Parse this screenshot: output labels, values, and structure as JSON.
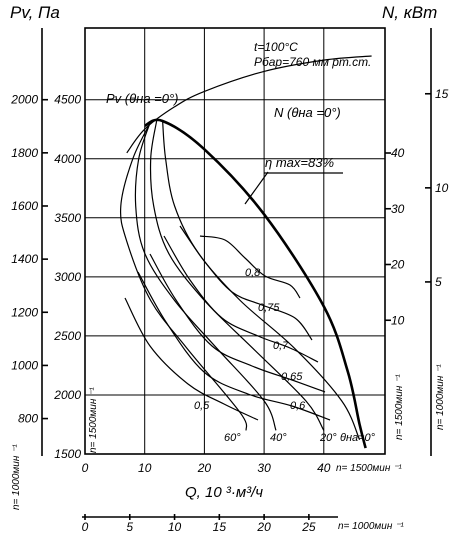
{
  "chart_data": {
    "type": "line",
    "title": "",
    "y_label": "Pv, Па",
    "n_label": "N, кВт",
    "x_label": "Q, 10 ³·м³/ч",
    "conditions": [
      "t=100°C",
      "Pбар=760 мм рт.ст."
    ],
    "eta_max_label": "η max=83%",
    "pv_curve_label": "Pv (θна =0°)",
    "n_curve_label": "N (θна =0°)",
    "speed_1500": "n= 1500мин ⁻¹",
    "speed_1000": "n= 1000мин ⁻¹",
    "axes": {
      "x_1500": {
        "ticks": [
          0,
          10,
          20,
          30,
          40
        ],
        "range": [
          0,
          50
        ]
      },
      "x_1000": {
        "ticks": [
          0,
          5,
          10,
          15,
          20,
          25
        ],
        "range": [
          0,
          33.3
        ]
      },
      "pv_1500": {
        "ticks": [
          1500,
          2000,
          2500,
          3000,
          3500,
          4000,
          4500
        ],
        "range": [
          1500,
          4950
        ]
      },
      "pv_1000": {
        "ticks": [
          800,
          1000,
          1200,
          1400,
          1600,
          1800,
          2000
        ]
      },
      "n_1500": {
        "ticks": [
          10,
          20,
          30,
          40
        ]
      },
      "n_1000": {
        "ticks": [
          5,
          10,
          15
        ]
      }
    },
    "envelope_1500": [
      [
        10,
        4280
      ],
      [
        13,
        4320
      ],
      [
        20,
        4080
      ],
      [
        30,
        3530
      ],
      [
        40,
        2750
      ],
      [
        44,
        2200
      ],
      [
        46,
        1750
      ],
      [
        47,
        1550
      ]
    ],
    "power_curve_1500": [
      [
        7,
        4050
      ],
      [
        10,
        4250
      ],
      [
        15,
        4440
      ],
      [
        20,
        4570
      ],
      [
        30,
        4740
      ],
      [
        40,
        4835
      ],
      [
        48,
        4870
      ]
    ],
    "blade_angle_curves": [
      {
        "label": "60°",
        "points": [
          [
            11,
            4310
          ],
          [
            8,
            4000
          ],
          [
            6,
            3600
          ],
          [
            7,
            3300
          ],
          [
            11,
            2800
          ],
          [
            17,
            2400
          ],
          [
            26,
            1850
          ],
          [
            27,
            1700
          ]
        ]
      },
      {
        "label": "40°",
        "points": [
          [
            11,
            4320
          ],
          [
            9,
            4000
          ],
          [
            8.5,
            3600
          ],
          [
            10,
            3200
          ],
          [
            15,
            2800
          ],
          [
            22,
            2400
          ],
          [
            30,
            1950
          ],
          [
            32,
            1700
          ]
        ]
      },
      {
        "label": "20°",
        "points": [
          [
            12,
            4320
          ],
          [
            11,
            4000
          ],
          [
            11.5,
            3600
          ],
          [
            14,
            3200
          ],
          [
            20,
            2800
          ],
          [
            28,
            2400
          ],
          [
            37,
            1950
          ],
          [
            40,
            1700
          ]
        ]
      },
      {
        "label": "θна=0°",
        "points": [
          [
            13,
            4320
          ],
          [
            13.5,
            4000
          ],
          [
            15,
            3600
          ],
          [
            19,
            3200
          ],
          [
            26,
            2800
          ],
          [
            35,
            2400
          ],
          [
            43,
            1950
          ],
          [
            46,
            1620
          ]
        ]
      }
    ],
    "efficiency_labels": [
      "0,8",
      "0,75",
      "0,7",
      "0,65",
      "0,6",
      "0,5"
    ]
  }
}
